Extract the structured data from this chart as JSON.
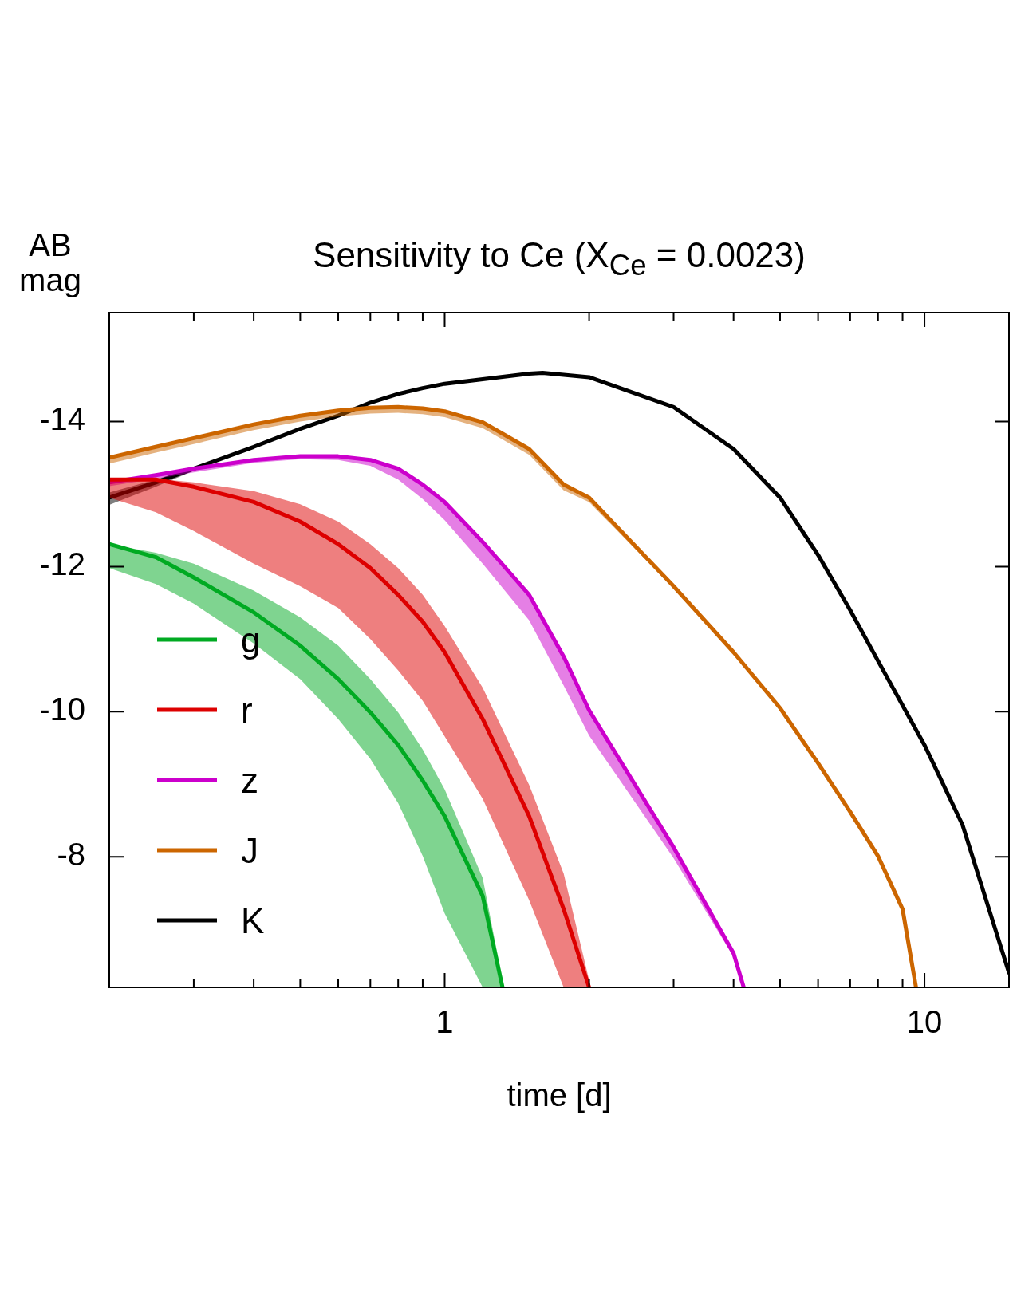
{
  "chart_data": {
    "type": "line",
    "title": "Sensitivity to Ce (X$_{Ce}$ = 0.0023)",
    "xlabel": "time [d]",
    "ylabel": "AB mag",
    "log": "x",
    "legend": "left",
    "grid": false,
    "marker": "none",
    "line_style": "solid",
    "xlim": [
      0.2,
      15
    ],
    "xticks": [
      {
        "value": 0.3,
        "label": null
      },
      {
        "value": 0.4,
        "label": null
      },
      {
        "value": 0.5,
        "label": null
      },
      {
        "value": 0.6,
        "label": null
      },
      {
        "value": 0.7,
        "label": null
      },
      {
        "value": 0.8,
        "label": null
      },
      {
        "value": 0.9,
        "label": null
      },
      1,
      {
        "value": 2,
        "label": null
      },
      {
        "value": 3,
        "label": null
      },
      {
        "value": 4,
        "label": null
      },
      {
        "value": 5,
        "label": null
      },
      {
        "value": 6,
        "label": null
      },
      {
        "value": 7,
        "label": null
      },
      {
        "value": 8,
        "label": null
      },
      {
        "value": 9,
        "label": null
      },
      10
    ],
    "ylim": [
      -6.2,
      -15.5
    ],
    "yticks": [
      -14,
      -12,
      -10,
      -8
    ],
    "series": [
      {
        "name": "g",
        "color": "#00aa22",
        "x": [
          0.2,
          0.25,
          0.3,
          0.4,
          0.5,
          0.6,
          0.7,
          0.8,
          0.9,
          1,
          1.2,
          1.32
        ],
        "values": [
          -12.31,
          -12.13,
          -11.85,
          -11.37,
          -10.91,
          -10.45,
          -9.99,
          -9.54,
          -9.05,
          -8.56,
          -7.46,
          -6.2
        ],
        "lower": [
          -12.31,
          -12.19,
          -12.04,
          -11.67,
          -11.3,
          -10.91,
          -10.45,
          -9.99,
          -9.48,
          -8.93,
          -7.71,
          -6.3
        ],
        "upper": [
          -11.98,
          -11.76,
          -11.49,
          -10.94,
          -10.45,
          -9.9,
          -9.35,
          -8.74,
          -8.01,
          -7.22,
          -6.2,
          -6.2
        ]
      },
      {
        "name": "r",
        "color": "#dd0000",
        "x": [
          0.2,
          0.25,
          0.3,
          0.4,
          0.5,
          0.6,
          0.7,
          0.8,
          0.9,
          1,
          1.2,
          1.5,
          1.77,
          2.0
        ],
        "values": [
          -13.2,
          -13.2,
          -13.1,
          -12.89,
          -12.62,
          -12.31,
          -11.98,
          -11.61,
          -11.24,
          -10.82,
          -9.9,
          -8.56,
          -7.28,
          -6.2
        ],
        "lower": [
          -13.2,
          -13.21,
          -13.16,
          -13.04,
          -12.86,
          -12.62,
          -12.31,
          -11.98,
          -11.61,
          -11.18,
          -10.33,
          -8.99,
          -7.77,
          -6.3
        ],
        "upper": [
          -12.95,
          -12.75,
          -12.49,
          -12.04,
          -11.73,
          -11.43,
          -11.0,
          -10.57,
          -10.15,
          -9.66,
          -8.8,
          -7.4,
          -6.2,
          -6.2
        ]
      },
      {
        "name": "z",
        "color": "#cc00cc",
        "x": [
          0.2,
          0.25,
          0.3,
          0.4,
          0.5,
          0.6,
          0.7,
          0.8,
          0.9,
          1,
          1.2,
          1.5,
          1.77,
          2,
          3,
          4,
          4.2
        ],
        "values": [
          -13.16,
          -13.26,
          -13.35,
          -13.47,
          -13.52,
          -13.52,
          -13.47,
          -13.35,
          -13.13,
          -12.89,
          -12.34,
          -11.61,
          -10.76,
          -10.02,
          -8.13,
          -6.67,
          -6.2
        ],
        "lower": [
          -13.16,
          -13.26,
          -13.35,
          -13.47,
          -13.52,
          -13.52,
          -13.47,
          -13.35,
          -13.13,
          -12.89,
          -12.34,
          -11.61,
          -10.76,
          -10.02,
          -8.13,
          -6.67,
          -6.2
        ],
        "upper": [
          -13.11,
          -13.21,
          -13.3,
          -13.43,
          -13.48,
          -13.47,
          -13.39,
          -13.2,
          -12.93,
          -12.64,
          -12.04,
          -11.26,
          -10.36,
          -9.67,
          -7.98,
          -6.62,
          -6.2
        ]
      },
      {
        "name": "J",
        "color": "#cc6600",
        "x": [
          0.2,
          0.25,
          0.3,
          0.4,
          0.5,
          0.6,
          0.7,
          0.8,
          0.9,
          1,
          1.2,
          1.5,
          1.77,
          2,
          3,
          4,
          5,
          6,
          7,
          8,
          9,
          9.6
        ],
        "values": [
          -13.5,
          -13.65,
          -13.77,
          -13.96,
          -14.08,
          -14.15,
          -14.19,
          -14.2,
          -14.18,
          -14.14,
          -13.99,
          -13.62,
          -13.13,
          -12.95,
          -11.73,
          -10.82,
          -10.05,
          -9.29,
          -8.62,
          -8.01,
          -7.28,
          -6.2
        ],
        "lower": [
          -13.5,
          -13.65,
          -13.77,
          -13.96,
          -14.08,
          -14.15,
          -14.19,
          -14.2,
          -14.18,
          -14.14,
          -13.99,
          -13.62,
          -13.13,
          -12.95,
          -11.73,
          -10.82,
          -10.05,
          -9.29,
          -8.62,
          -8.01,
          -7.28,
          -6.2
        ],
        "upper": [
          -13.42,
          -13.57,
          -13.69,
          -13.88,
          -14.0,
          -14.07,
          -14.11,
          -14.12,
          -14.1,
          -14.06,
          -13.91,
          -13.54,
          -13.05,
          -12.89,
          -11.7,
          -10.82,
          -10.05,
          -9.29,
          -8.62,
          -8.01,
          -7.28,
          -6.2
        ]
      },
      {
        "name": "K",
        "color": "#000000",
        "x": [
          0.2,
          0.25,
          0.3,
          0.4,
          0.5,
          0.6,
          0.7,
          0.8,
          0.9,
          1,
          1.5,
          1.6,
          2,
          3,
          4,
          5,
          6,
          7,
          8,
          10,
          12,
          15
        ],
        "values": [
          -12.95,
          -13.16,
          -13.35,
          -13.65,
          -13.9,
          -14.08,
          -14.26,
          -14.38,
          -14.46,
          -14.52,
          -14.66,
          -14.67,
          -14.61,
          -14.2,
          -13.62,
          -12.95,
          -12.16,
          -11.4,
          -10.7,
          -9.54,
          -8.44,
          -6.4
        ],
        "lower": [
          -13.02,
          -13.2,
          -13.37,
          -13.65,
          -13.9,
          -14.08,
          -14.26,
          -14.38,
          -14.46,
          -14.52,
          -14.66,
          -14.67,
          -14.61,
          -14.2,
          -13.62,
          -12.95,
          -12.16,
          -11.4,
          -10.7,
          -9.54,
          -8.44,
          -6.4
        ],
        "upper": [
          -12.85,
          -13.1,
          -13.32,
          -13.65,
          -13.9,
          -14.08,
          -14.26,
          -14.38,
          -14.46,
          -14.52,
          -14.66,
          -14.67,
          -14.61,
          -14.2,
          -13.62,
          -12.95,
          -12.16,
          -11.4,
          -10.7,
          -9.54,
          -8.44,
          -6.4
        ]
      }
    ]
  }
}
